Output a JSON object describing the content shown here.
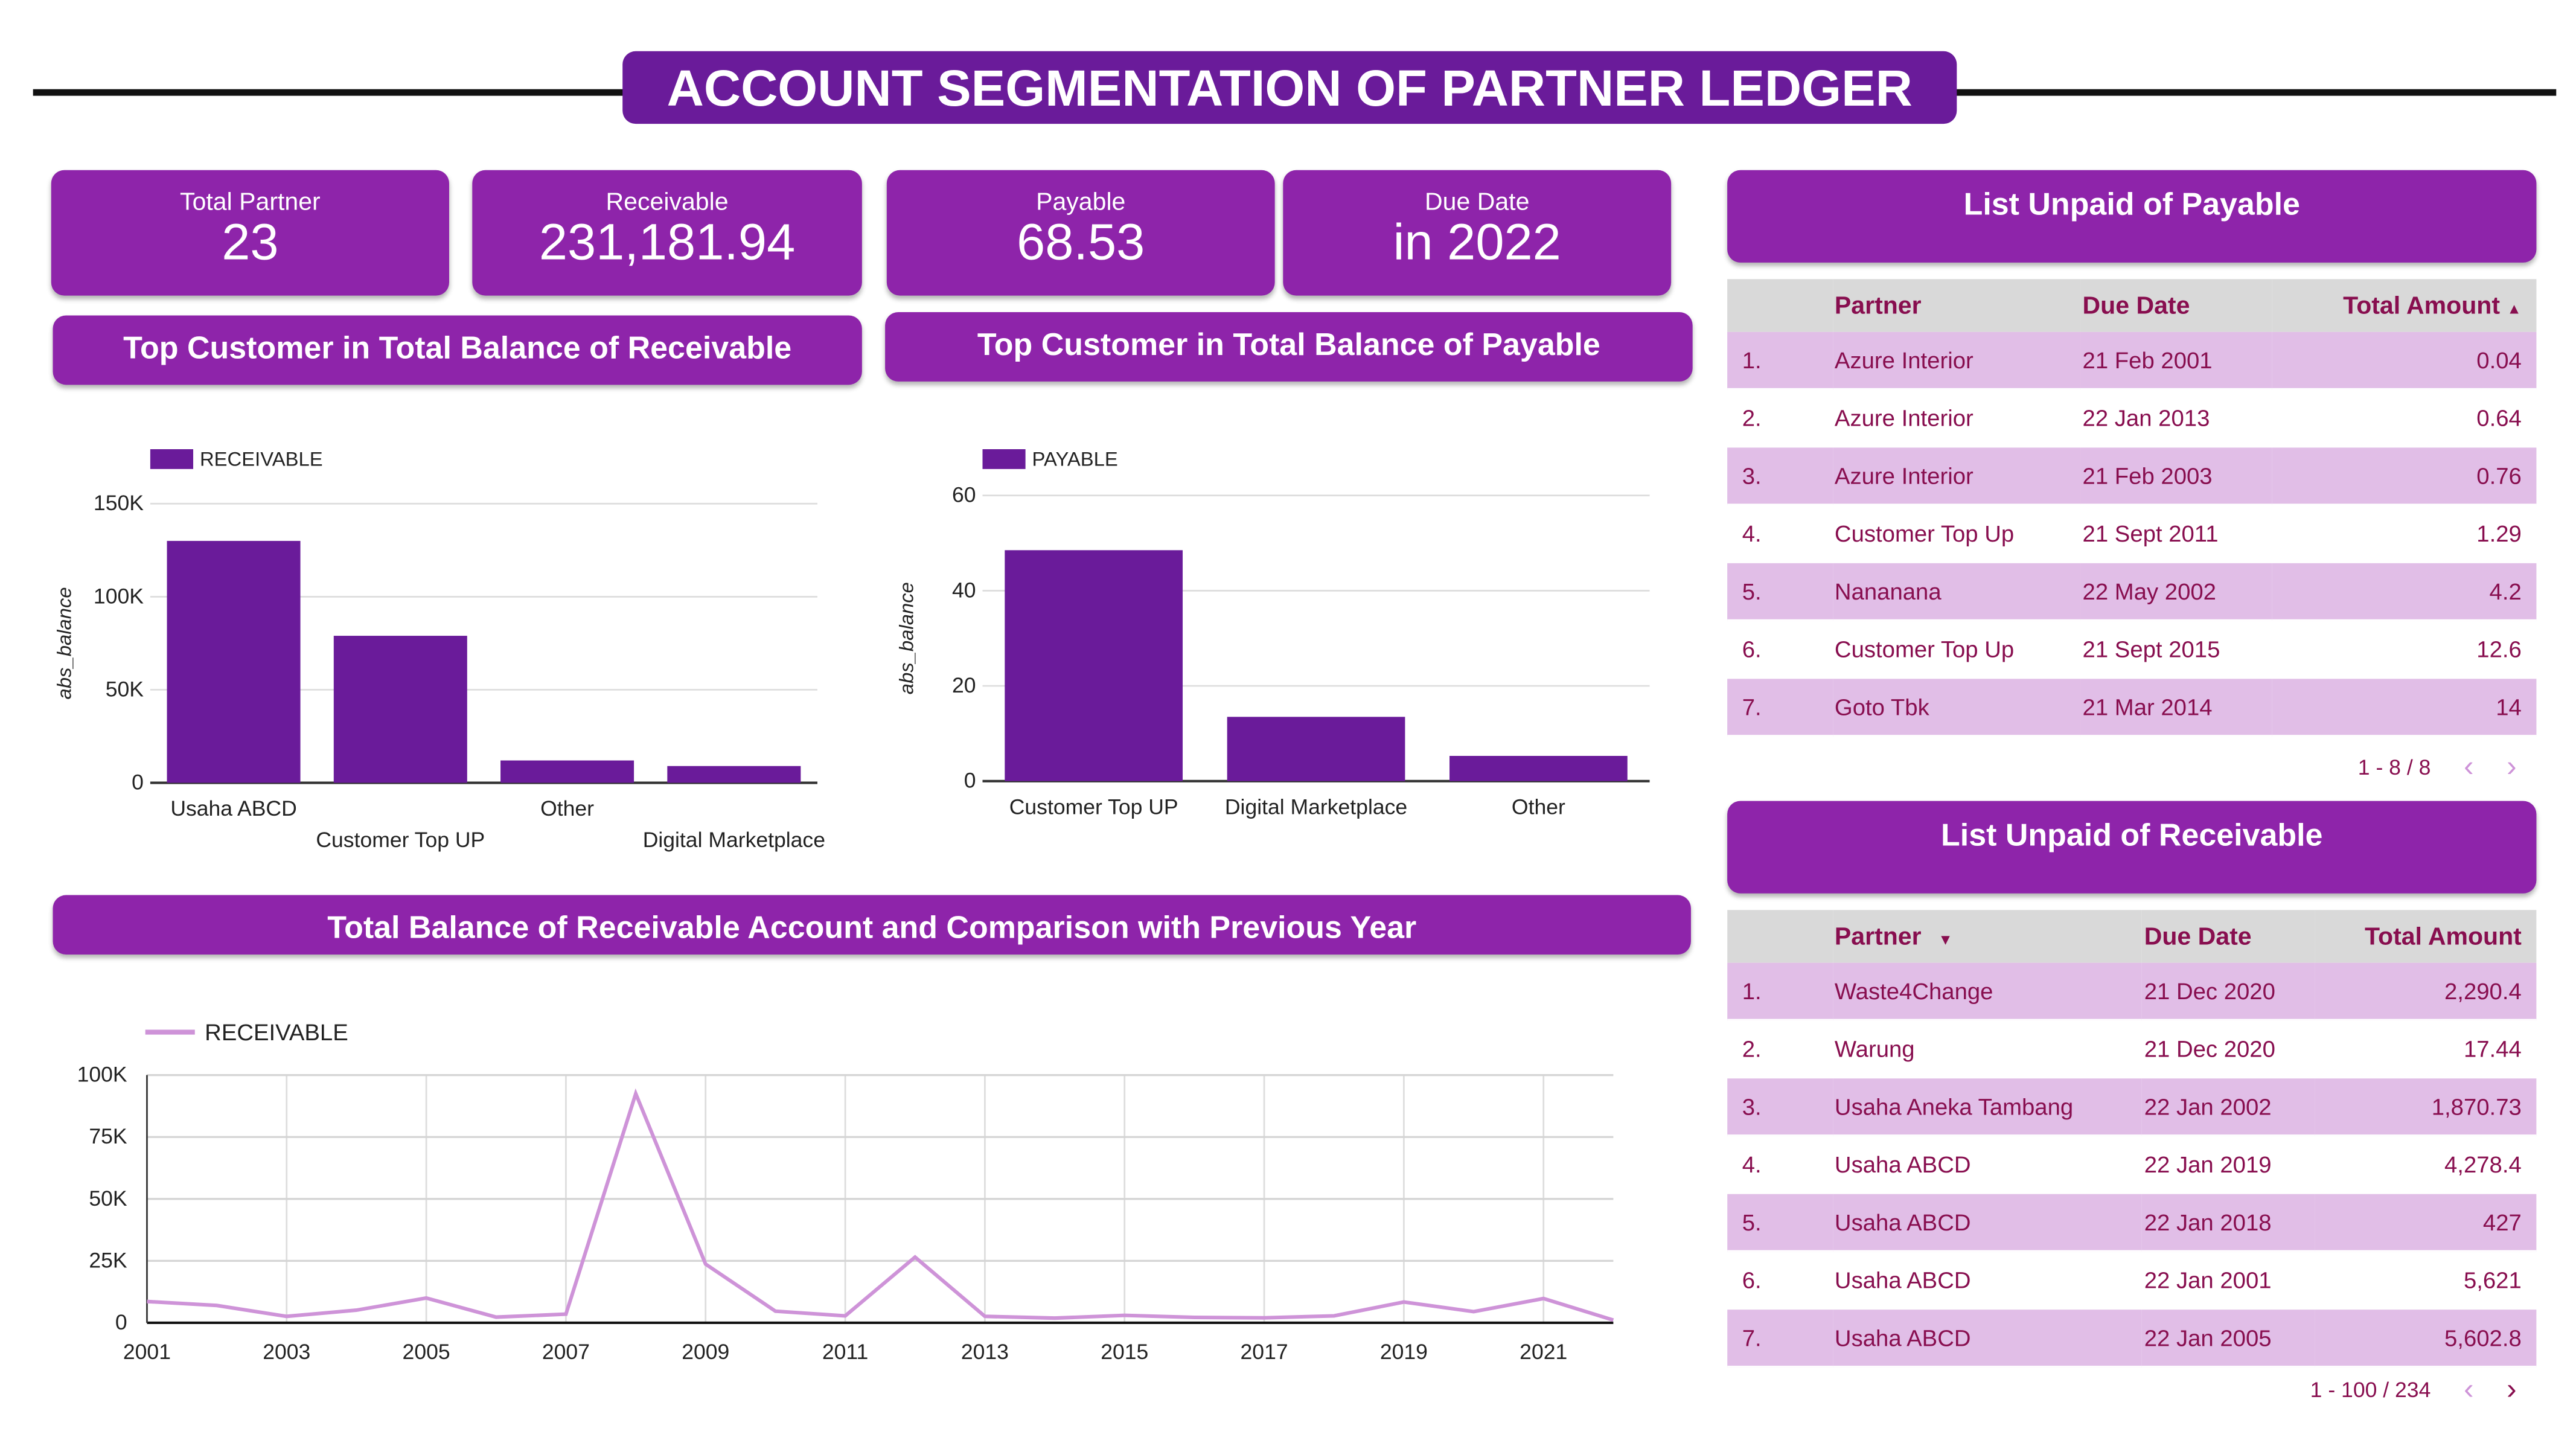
{
  "title": "ACCOUNT SEGMENTATION OF PARTNER LEDGER",
  "kpis": [
    {
      "label": "Total Partner",
      "value": "23"
    },
    {
      "label": "Receivable",
      "value": "231,181.94"
    },
    {
      "label": "Payable",
      "value": "68.53"
    },
    {
      "label": "Due Date",
      "value": "in 2022"
    }
  ],
  "sections": {
    "top_receivable": "Top Customer in Total Balance of Receivable",
    "top_payable": "Top Customer in Total Balance of Payable",
    "trend": "Total Balance of Receivable Account and Comparison with Previous Year",
    "unpaid_payable": "List Unpaid of Payable",
    "unpaid_receivable": "List Unpaid of Receivable"
  },
  "colors": {
    "header": "#6a1b9a",
    "card": "#8e24aa",
    "bar": "#6a1b9a",
    "line": "#ce93d8",
    "row_alt": "#e1bee7",
    "table_text": "#880e4f"
  },
  "chart_data": [
    {
      "type": "bar",
      "legend": "RECEIVABLE",
      "ylabel": "abs_balance",
      "categories": [
        "Usaha ABCD",
        "Customer Top UP",
        "Other",
        "Digital Marketplace"
      ],
      "values": [
        130000,
        79000,
        12000,
        9000
      ],
      "ylim": [
        0,
        150000
      ],
      "yticks": [
        "0",
        "50K",
        "100K",
        "150K"
      ],
      "grid": true,
      "legend_position": "top-left"
    },
    {
      "type": "bar",
      "legend": "PAYABLE",
      "ylabel": "abs_balance",
      "categories": [
        "Customer Top UP",
        "Digital Marketplace",
        "Other"
      ],
      "values": [
        48.5,
        13.5,
        5.3
      ],
      "ylim": [
        0,
        60
      ],
      "yticks": [
        "0",
        "20",
        "40",
        "60"
      ],
      "grid": true,
      "legend_position": "top-left"
    },
    {
      "type": "line",
      "legend": "RECEIVABLE",
      "x": [
        2001,
        2002,
        2003,
        2004,
        2005,
        2006,
        2007,
        2008,
        2009,
        2010,
        2011,
        2012,
        2013,
        2014,
        2015,
        2016,
        2017,
        2018,
        2019,
        2020,
        2021,
        2022
      ],
      "values": [
        8600,
        7000,
        2600,
        5100,
        10000,
        2300,
        3500,
        92500,
        23700,
        4700,
        2800,
        26500,
        2600,
        1900,
        3000,
        2200,
        2000,
        2800,
        8400,
        4500,
        9800,
        1100
      ],
      "ylim": [
        0,
        100000
      ],
      "yticks": [
        "0",
        "25K",
        "50K",
        "75K",
        "100K"
      ],
      "xticks": [
        "2001",
        "2003",
        "2005",
        "2007",
        "2009",
        "2011",
        "2013",
        "2015",
        "2017",
        "2019",
        "2021"
      ],
      "grid": true,
      "legend_position": "top-left"
    }
  ],
  "payable_table": {
    "columns": [
      "Partner",
      "Due Date",
      "Total Amount"
    ],
    "sort_indicator": "▲",
    "rows": [
      [
        "1.",
        "Azure Interior",
        "21 Feb 2001",
        "0.04"
      ],
      [
        "2.",
        "Azure Interior",
        "22 Jan 2013",
        "0.64"
      ],
      [
        "3.",
        "Azure Interior",
        "21 Feb 2003",
        "0.76"
      ],
      [
        "4.",
        "Customer Top Up",
        "21 Sept 2011",
        "1.29"
      ],
      [
        "5.",
        "Nananana",
        "22 May 2002",
        "4.2"
      ],
      [
        "6.",
        "Customer Top Up",
        "21 Sept 2015",
        "12.6"
      ],
      [
        "7.",
        "Goto Tbk",
        "21 Mar 2014",
        "14"
      ]
    ],
    "pager": "1 - 8 / 8"
  },
  "receivable_table": {
    "columns": [
      "Partner",
      "Due Date",
      "Total Amount"
    ],
    "sort_indicator": "▼",
    "rows": [
      [
        "1.",
        "Waste4Change",
        "21 Dec 2020",
        "2,290.4"
      ],
      [
        "2.",
        "Warung",
        "21 Dec 2020",
        "17.44"
      ],
      [
        "3.",
        "Usaha Aneka Tambang",
        "22 Jan 2002",
        "1,870.73"
      ],
      [
        "4.",
        "Usaha ABCD",
        "22 Jan 2019",
        "4,278.4"
      ],
      [
        "5.",
        "Usaha ABCD",
        "22 Jan 2018",
        "427"
      ],
      [
        "6.",
        "Usaha ABCD",
        "22 Jan 2001",
        "5,621"
      ],
      [
        "7.",
        "Usaha ABCD",
        "22 Jan 2005",
        "5,602.8"
      ]
    ],
    "pager": "1 - 100 / 234"
  }
}
